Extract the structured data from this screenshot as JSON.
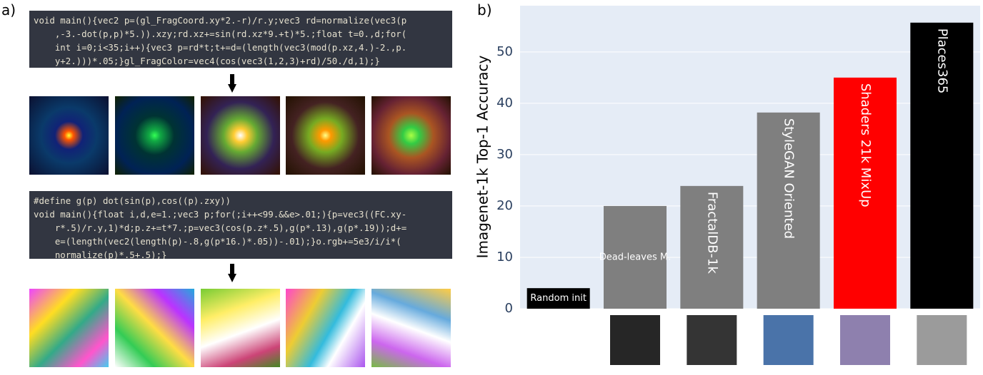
{
  "panels": {
    "a": "a)",
    "b": "b)"
  },
  "code_blocks": [
    [
      "void main(){vec2 p=(gl_FragCoord.xy*2.-r)/r.y;vec3 rd=normalize(vec3(p",
      "    ,-3.-dot(p,p)*5.)).xzy;rd.xz+=sin(rd.xz*9.+t)*5.;float t=0.,d;for(",
      "    int i=0;i<35;i++){vec3 p=rd*t;t+=d=(length(vec3(mod(p.xz,4.)-2.,p.",
      "    y+2.)))*.05;}gl_FragColor=vec4(cos(vec3(1,2,3)+rd)/50./d,1);}"
    ],
    [
      "#define g(p) dot(sin(p),cos((p).zxy))",
      "void main(){float i,d,e=1.;vec3 p;for(;i++<99.&&e>.01;){p=vec3((FC.xy-",
      "    r*.5)/r.y,1)*d;p.z+=t*7.;p=vec3(cos(p.z*.5),g(p*.13),g(p*.19));d+=",
      "    e=(length(vec2(length(p)-.8,g(p*16.)*.05))-.01);}o.rgb+=5e3/i/i*(",
      "    normalize(p)*.5+.5);}"
    ]
  ],
  "chart_data": {
    "type": "bar",
    "y_label": "Imagenet-1k Top-1 Accuracy",
    "categories": [
      "Random init",
      "Dead-leaves M.",
      "FractalDB-1k",
      "StyleGAN Oriented",
      "Shaders 21k MixUp",
      "Places365"
    ],
    "values": [
      4,
      20,
      23.9,
      38.2,
      45,
      55.7
    ],
    "colors": [
      "#000000",
      "#7f7f7f",
      "#7f7f7f",
      "#7f7f7f",
      "#ff0000",
      "#000000"
    ],
    "ylim": [
      0,
      59
    ],
    "yticks": [
      0,
      10,
      20,
      30,
      40,
      50
    ],
    "grid": true
  }
}
